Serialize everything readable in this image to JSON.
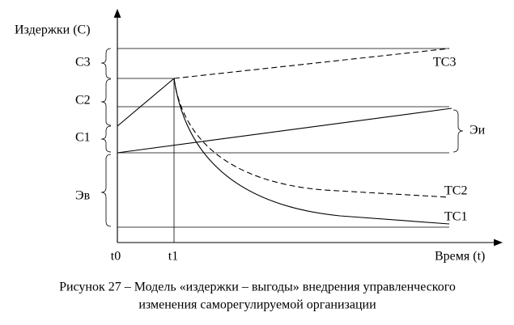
{
  "axes": {
    "y_label": "Издержки (С)",
    "x_label": "Время (t)",
    "x_ticks": [
      "t0",
      "t1"
    ]
  },
  "segments": {
    "c3": "С3",
    "c2": "С2",
    "c1": "С1",
    "ev": "Эв",
    "ei": "Эи"
  },
  "curves": {
    "tc3": "ТС3",
    "tc2": "ТС2",
    "tc1": "ТС1"
  },
  "caption": [
    "Рисунок 27 – Модель «издержки – выгоды» внедрения управленческого",
    "изменения саморегулируемой организации"
  ]
}
